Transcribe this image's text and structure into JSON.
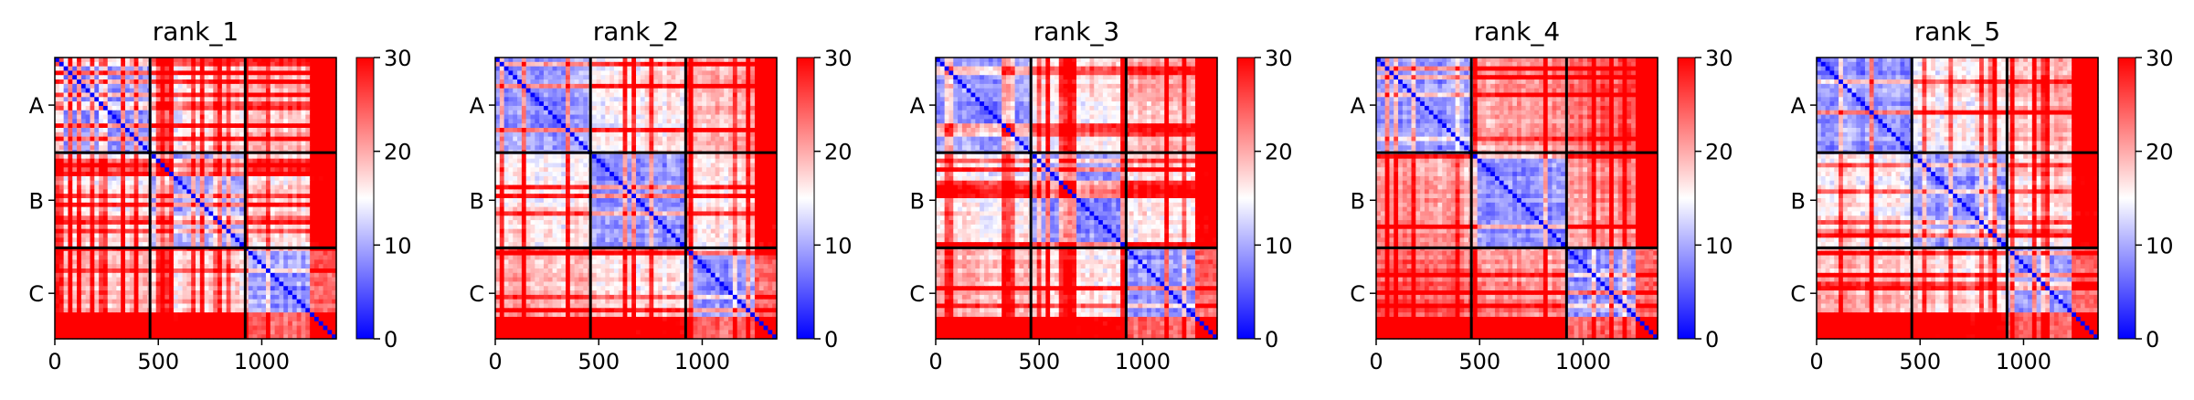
{
  "colormap": {
    "low": "#0000ff",
    "mid": "#ffffff",
    "high": "#ff0000"
  },
  "chart_data": [
    {
      "type": "heatmap",
      "title": "rank_1",
      "variant": 0,
      "chains": [
        "A",
        "B",
        "C"
      ],
      "chain_bounds": [
        0,
        460,
        920,
        1360
      ],
      "x_ticks": [
        0,
        500,
        1000
      ],
      "xlim": [
        0,
        1360
      ],
      "colorbar_ticks": [
        0,
        10,
        20,
        30
      ],
      "vmin": 0,
      "vmax": 30
    },
    {
      "type": "heatmap",
      "title": "rank_2",
      "variant": 1,
      "chains": [
        "A",
        "B",
        "C"
      ],
      "chain_bounds": [
        0,
        460,
        920,
        1360
      ],
      "x_ticks": [
        0,
        500,
        1000
      ],
      "xlim": [
        0,
        1360
      ],
      "colorbar_ticks": [
        0,
        10,
        20,
        30
      ],
      "vmin": 0,
      "vmax": 30
    },
    {
      "type": "heatmap",
      "title": "rank_3",
      "variant": 2,
      "chains": [
        "A",
        "B",
        "C"
      ],
      "chain_bounds": [
        0,
        460,
        920,
        1360
      ],
      "x_ticks": [
        0,
        500,
        1000
      ],
      "xlim": [
        0,
        1360
      ],
      "colorbar_ticks": [
        0,
        10,
        20,
        30
      ],
      "vmin": 0,
      "vmax": 30
    },
    {
      "type": "heatmap",
      "title": "rank_4",
      "variant": 3,
      "chains": [
        "A",
        "B",
        "C"
      ],
      "chain_bounds": [
        0,
        460,
        920,
        1360
      ],
      "x_ticks": [
        0,
        500,
        1000
      ],
      "xlim": [
        0,
        1360
      ],
      "colorbar_ticks": [
        0,
        10,
        20,
        30
      ],
      "vmin": 0,
      "vmax": 30
    },
    {
      "type": "heatmap",
      "title": "rank_5",
      "variant": 4,
      "chains": [
        "A",
        "B",
        "C"
      ],
      "chain_bounds": [
        0,
        460,
        920,
        1360
      ],
      "x_ticks": [
        0,
        500,
        1000
      ],
      "xlim": [
        0,
        1360
      ],
      "colorbar_ticks": [
        0,
        10,
        20,
        30
      ],
      "vmin": 0,
      "vmax": 30
    }
  ]
}
